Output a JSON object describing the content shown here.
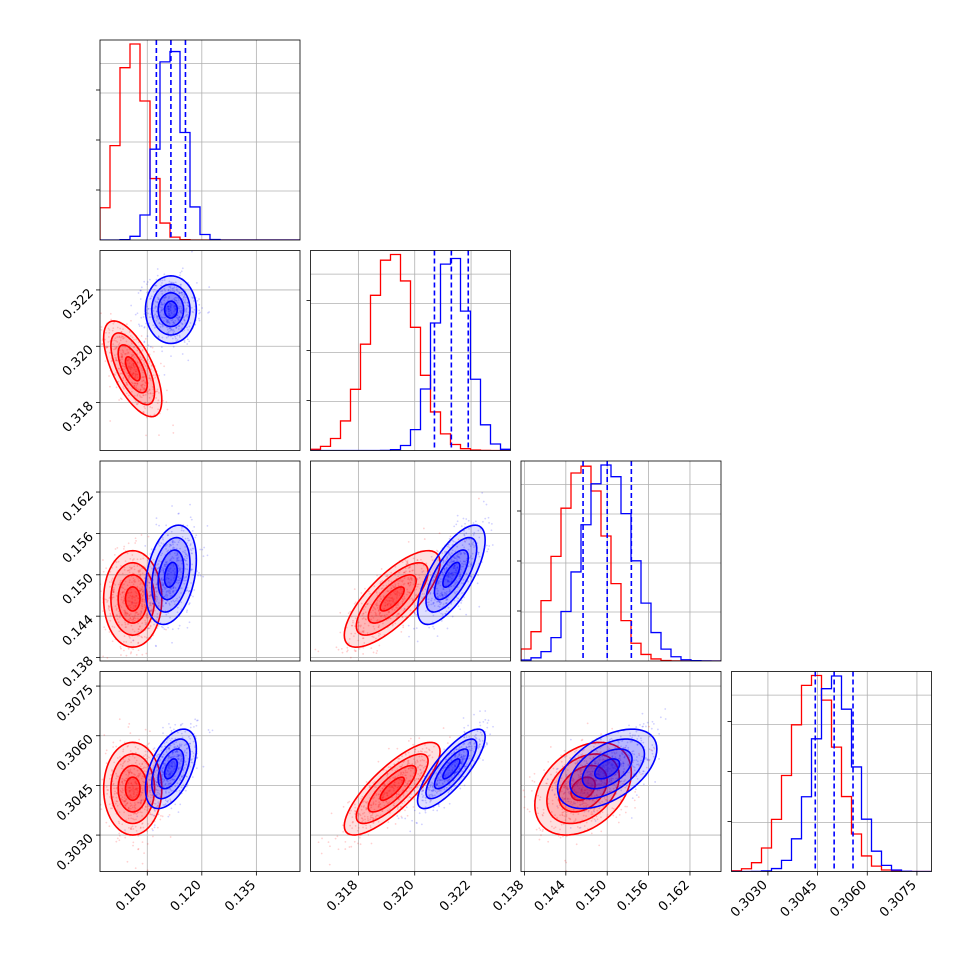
{
  "chart_data": {
    "type": "scatter",
    "title": "",
    "legend": "none",
    "grid": true,
    "colors": {
      "red_series": "#ff0000",
      "blue_series": "#0000ff",
      "grid": "#b0b0b0",
      "axes": "#000000"
    },
    "series": [
      {
        "color": "red",
        "mean": [
          0.101,
          0.3192,
          0.1465,
          0.3044
        ],
        "sd": [
          0.004,
          0.00085,
          0.0035,
          0.0007
        ],
        "corr": [
          [
            1,
            -0.65,
            0.0,
            0.0
          ],
          [
            -0.65,
            1,
            0.75,
            0.8
          ],
          [
            0.0,
            0.75,
            1,
            0.35
          ],
          [
            0.0,
            0.8,
            0.35,
            1
          ]
        ]
      },
      {
        "color": "blue",
        "mean": [
          0.1115,
          0.3213,
          0.15,
          0.305
        ],
        "sd": [
          0.0035,
          0.0006,
          0.0036,
          0.0006
        ],
        "corr": [
          [
            1,
            0.0,
            0.3,
            0.5
          ],
          [
            0.0,
            1,
            0.7,
            0.8
          ],
          [
            0.3,
            0.7,
            1,
            0.5
          ],
          [
            0.5,
            0.8,
            0.5,
            1
          ]
        ]
      }
    ],
    "quantile_lines": [
      [
        0.1075,
        0.1115,
        0.1155
      ],
      [
        0.3207,
        0.3213,
        0.3219
      ],
      [
        0.1465,
        0.15,
        0.1535
      ],
      [
        0.30443,
        0.305,
        0.30557
      ]
    ],
    "parameters": [
      {
        "range": [
          0.092,
          0.147
        ],
        "ticks": [
          "0.105",
          "0.120",
          "0.135"
        ]
      },
      {
        "range": [
          0.3163,
          0.3234
        ],
        "ticks": [
          "0.318",
          "0.320",
          "0.322"
        ]
      },
      {
        "range": [
          0.1375,
          0.1665
        ],
        "ticks": [
          "0.138",
          "0.144",
          "0.150",
          "0.156",
          "0.162"
        ]
      },
      {
        "range": [
          0.3019,
          0.30794
        ],
        "ticks": [
          "0.3030",
          "0.3045",
          "0.3060",
          "0.3075"
        ]
      }
    ]
  }
}
